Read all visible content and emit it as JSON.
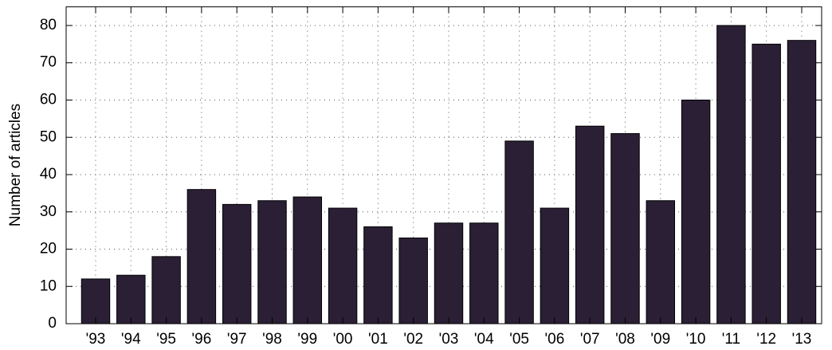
{
  "chart_data": {
    "type": "bar",
    "y_label": "Number of articles",
    "categories": [
      "'93",
      "'94",
      "'95",
      "'96",
      "'97",
      "'98",
      "'99",
      "'00",
      "'01",
      "'02",
      "'03",
      "'04",
      "'05",
      "'06",
      "'07",
      "'08",
      "'09",
      "'10",
      "'11",
      "'12",
      "'13"
    ],
    "values": [
      12,
      13,
      18,
      36,
      32,
      33,
      34,
      31,
      26,
      23,
      27,
      27,
      49,
      31,
      53,
      51,
      33,
      60,
      80,
      75,
      76
    ],
    "color": "#2b1f35",
    "ylim": [
      0,
      85
    ],
    "yticks": [
      0,
      10,
      20,
      30,
      40,
      50,
      60,
      70,
      80
    ],
    "grid": true
  }
}
